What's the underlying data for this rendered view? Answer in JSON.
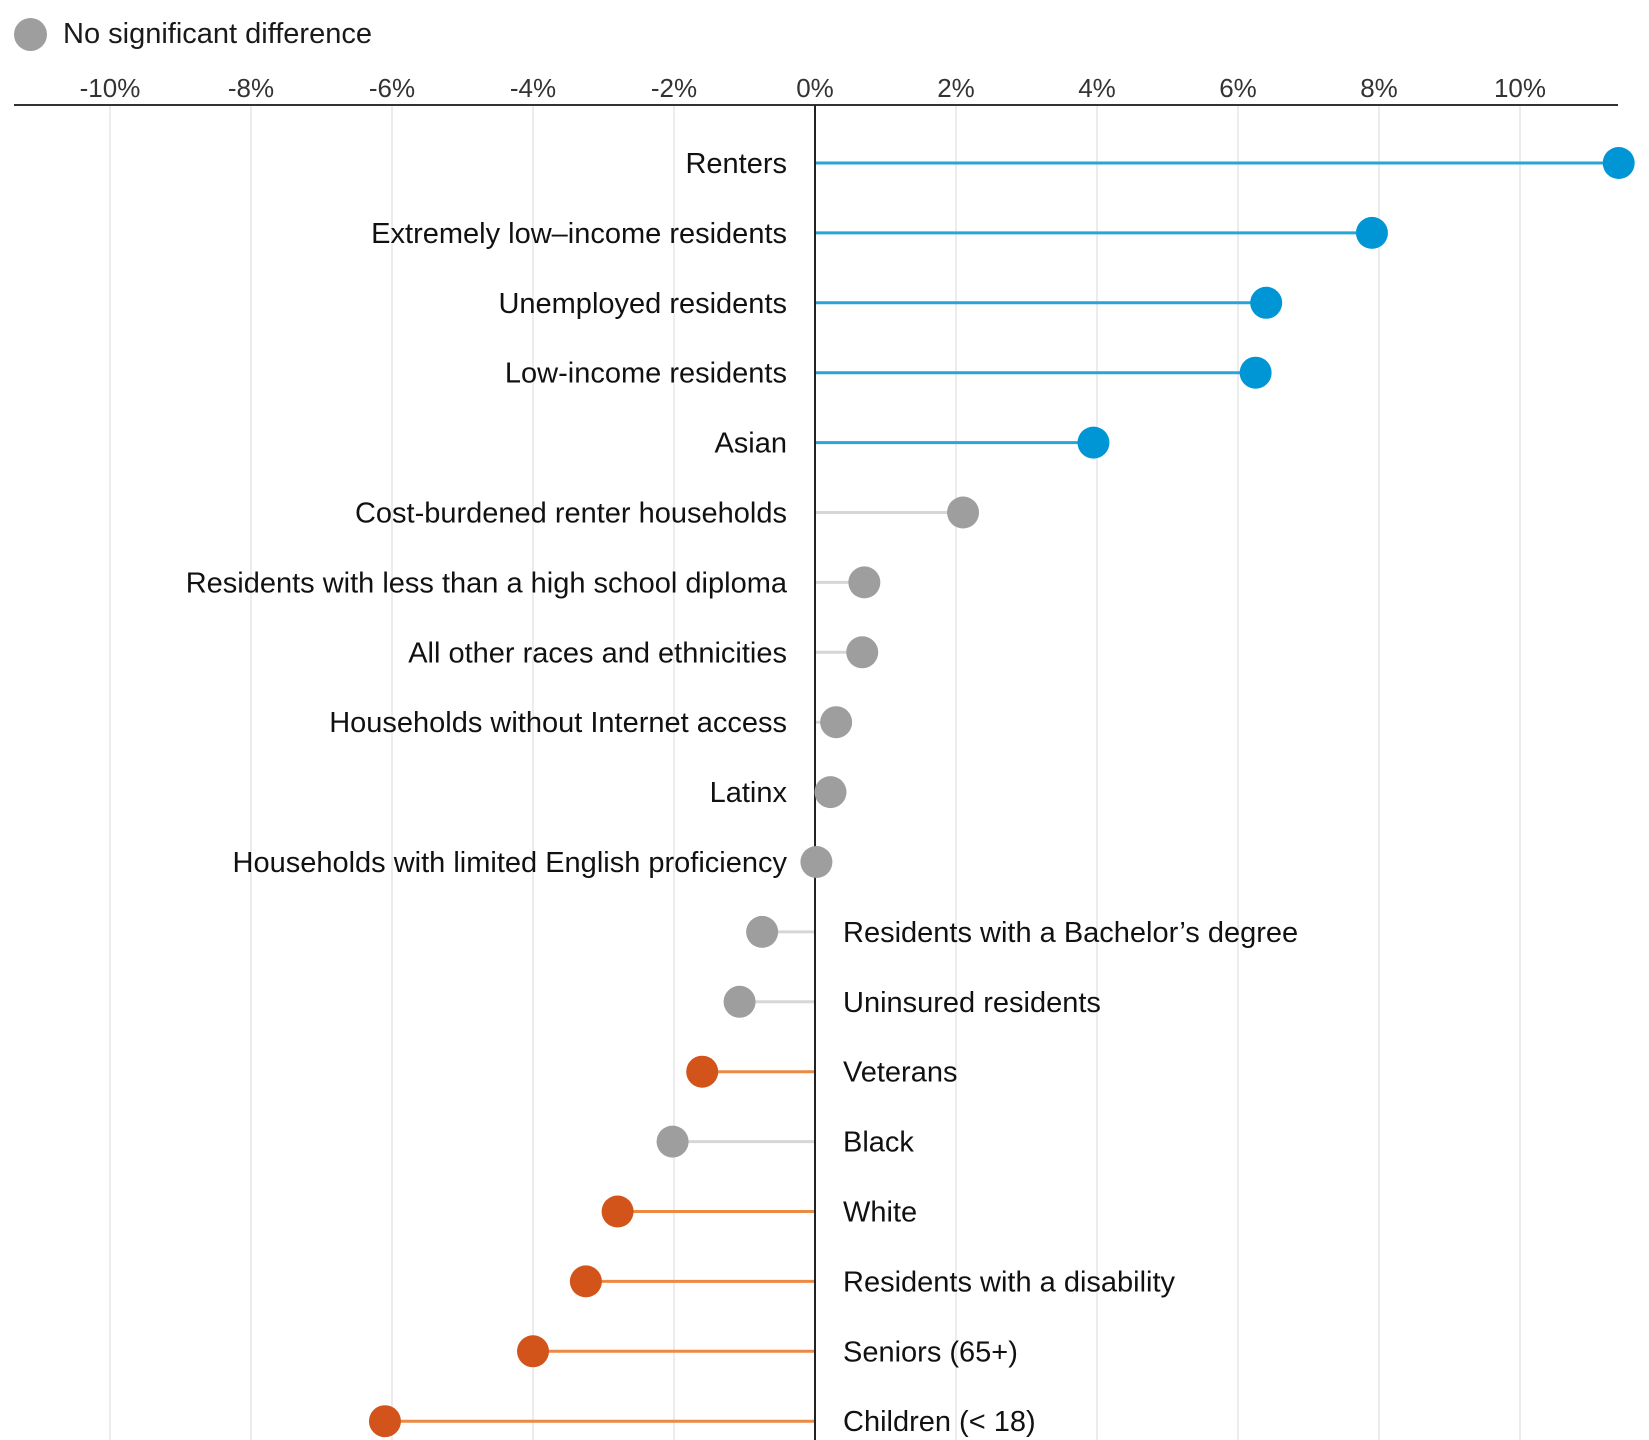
{
  "chart_data": {
    "type": "lollipop",
    "title": "",
    "xlabel": "",
    "ylabel": "",
    "xlim": [
      -11.5,
      11.5
    ],
    "x_ticks": [
      -10,
      -8,
      -6,
      -4,
      -2,
      0,
      2,
      4,
      6,
      8,
      10
    ],
    "x_tick_labels": [
      "-10%",
      "-8%",
      "-6%",
      "-4%",
      "-2%",
      "0%",
      "2%",
      "4%",
      "6%",
      "8%",
      "10%"
    ],
    "grid": true,
    "legend": {
      "position": "top-left",
      "entries": [
        {
          "label": "No significant difference",
          "color": "#9e9e9e"
        }
      ]
    },
    "colors": {
      "positive_significant": "#0096d6",
      "negative_significant": "#d2541a",
      "no_significant_difference": "#9e9e9e",
      "positive_stem": "#2aa4d8",
      "negative_stem": "#ec8a44",
      "neutral_stem": "#d6d6d6"
    },
    "points": [
      {
        "label": "Renters",
        "value": 11.4,
        "status": "positive"
      },
      {
        "label": "Extremely low–income residents",
        "value": 7.9,
        "status": "positive"
      },
      {
        "label": "Unemployed residents",
        "value": 6.4,
        "status": "positive"
      },
      {
        "label": "Low-income residents",
        "value": 6.25,
        "status": "positive"
      },
      {
        "label": "Asian",
        "value": 3.95,
        "status": "positive"
      },
      {
        "label": "Cost-burdened renter households",
        "value": 2.1,
        "status": "neutral"
      },
      {
        "label": "Residents with less than a high school diploma",
        "value": 0.7,
        "status": "neutral"
      },
      {
        "label": "All other races and ethnicities",
        "value": 0.67,
        "status": "neutral"
      },
      {
        "label": "Households without Internet access",
        "value": 0.3,
        "status": "neutral"
      },
      {
        "label": "Latinx",
        "value": 0.22,
        "status": "neutral"
      },
      {
        "label": "Households with limited English proficiency",
        "value": 0.02,
        "status": "neutral"
      },
      {
        "label": "Residents with a Bachelor’s degree",
        "value": -0.75,
        "status": "neutral"
      },
      {
        "label": "Uninsured residents",
        "value": -1.07,
        "status": "neutral"
      },
      {
        "label": "Veterans",
        "value": -1.6,
        "status": "negative"
      },
      {
        "label": "Black",
        "value": -2.02,
        "status": "neutral"
      },
      {
        "label": "White",
        "value": -2.8,
        "status": "negative"
      },
      {
        "label": "Residents with a disability",
        "value": -3.25,
        "status": "negative"
      },
      {
        "label": "Seniors (65+)",
        "value": -4.0,
        "status": "negative"
      },
      {
        "label": "Children (< 18)",
        "value": -6.1,
        "status": "negative"
      }
    ]
  }
}
